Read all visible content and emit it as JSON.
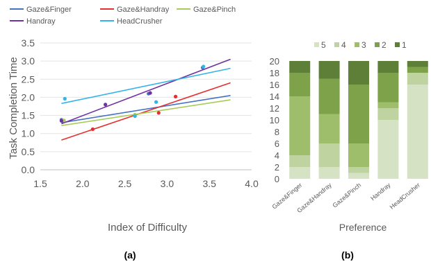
{
  "chart_data": [
    {
      "type": "scatter",
      "panel_label": "(a)",
      "xlabel": "Index of Difficulty",
      "ylabel": "Task Completion Time",
      "xlim": [
        1.5,
        4.0
      ],
      "ylim": [
        0.0,
        3.5
      ],
      "xticks": [
        "1.5",
        "2.0",
        "2.5",
        "3.0",
        "3.5",
        "4.0"
      ],
      "yticks": [
        "0.0",
        "0.5",
        "1.0",
        "1.5",
        "2.0",
        "2.5",
        "3.0",
        "3.5"
      ],
      "grid": "horizontal",
      "legend": "top",
      "series": [
        {
          "name": "Gaze&Finger",
          "color": "#4472c4",
          "points": [
            [
              1.75,
              1.38
            ],
            [
              2.78,
              2.1
            ],
            [
              3.42,
              2.82
            ]
          ],
          "trend": [
            [
              1.75,
              1.3
            ],
            [
              3.75,
              2.05
            ]
          ]
        },
        {
          "name": "Gaze&Handray",
          "color": "#e52e2e",
          "points": [
            [
              2.12,
              1.12
            ],
            [
              2.9,
              1.57
            ],
            [
              3.1,
              2.02
            ]
          ],
          "trend": [
            [
              1.75,
              0.82
            ],
            [
              3.75,
              2.4
            ]
          ]
        },
        {
          "name": "Gaze&Pinch",
          "color": "#a6cc55",
          "points": [
            [
              1.78,
              1.36
            ],
            [
              2.62,
              1.52
            ]
          ],
          "trend": [
            [
              1.75,
              1.22
            ],
            [
              3.75,
              1.93
            ]
          ]
        },
        {
          "name": "Handray",
          "color": "#7030a0",
          "points": [
            [
              1.75,
              1.35
            ],
            [
              2.27,
              1.8
            ],
            [
              2.8,
              2.12
            ]
          ],
          "trend": [
            [
              1.75,
              1.27
            ],
            [
              3.75,
              3.05
            ]
          ]
        },
        {
          "name": "HeadCrusher",
          "color": "#33b4e6",
          "points": [
            [
              1.79,
              1.96
            ],
            [
              2.62,
              1.48
            ],
            [
              2.87,
              1.87
            ],
            [
              3.43,
              2.85
            ]
          ],
          "trend": [
            [
              1.75,
              1.83
            ],
            [
              3.75,
              2.8
            ]
          ]
        }
      ]
    },
    {
      "type": "bar",
      "stacked": true,
      "panel_label": "(b)",
      "xlabel": "Preference",
      "ylabel": "",
      "ylim": [
        0,
        20
      ],
      "yticks": [
        "0",
        "2",
        "4",
        "6",
        "8",
        "10",
        "12",
        "14",
        "16",
        "18",
        "20"
      ],
      "legend": "top",
      "categories": [
        "Gaze&Finger",
        "Gaze&Handray",
        "Gaze&Pinch",
        "Handray",
        "HeadCrusher"
      ],
      "series": [
        {
          "name": "5",
          "color": "#d5e2c3",
          "values": [
            2,
            2,
            1,
            10,
            16
          ]
        },
        {
          "name": "4",
          "color": "#bfd3a0",
          "values": [
            2,
            4,
            1,
            2,
            2
          ]
        },
        {
          "name": "3",
          "color": "#9ebe6c",
          "values": [
            10,
            5,
            4,
            1,
            0
          ]
        },
        {
          "name": "2",
          "color": "#7da24a",
          "values": [
            4,
            6,
            10,
            5,
            1
          ]
        },
        {
          "name": "1",
          "color": "#5e7f37",
          "values": [
            2,
            3,
            4,
            2,
            1
          ]
        }
      ]
    }
  ]
}
